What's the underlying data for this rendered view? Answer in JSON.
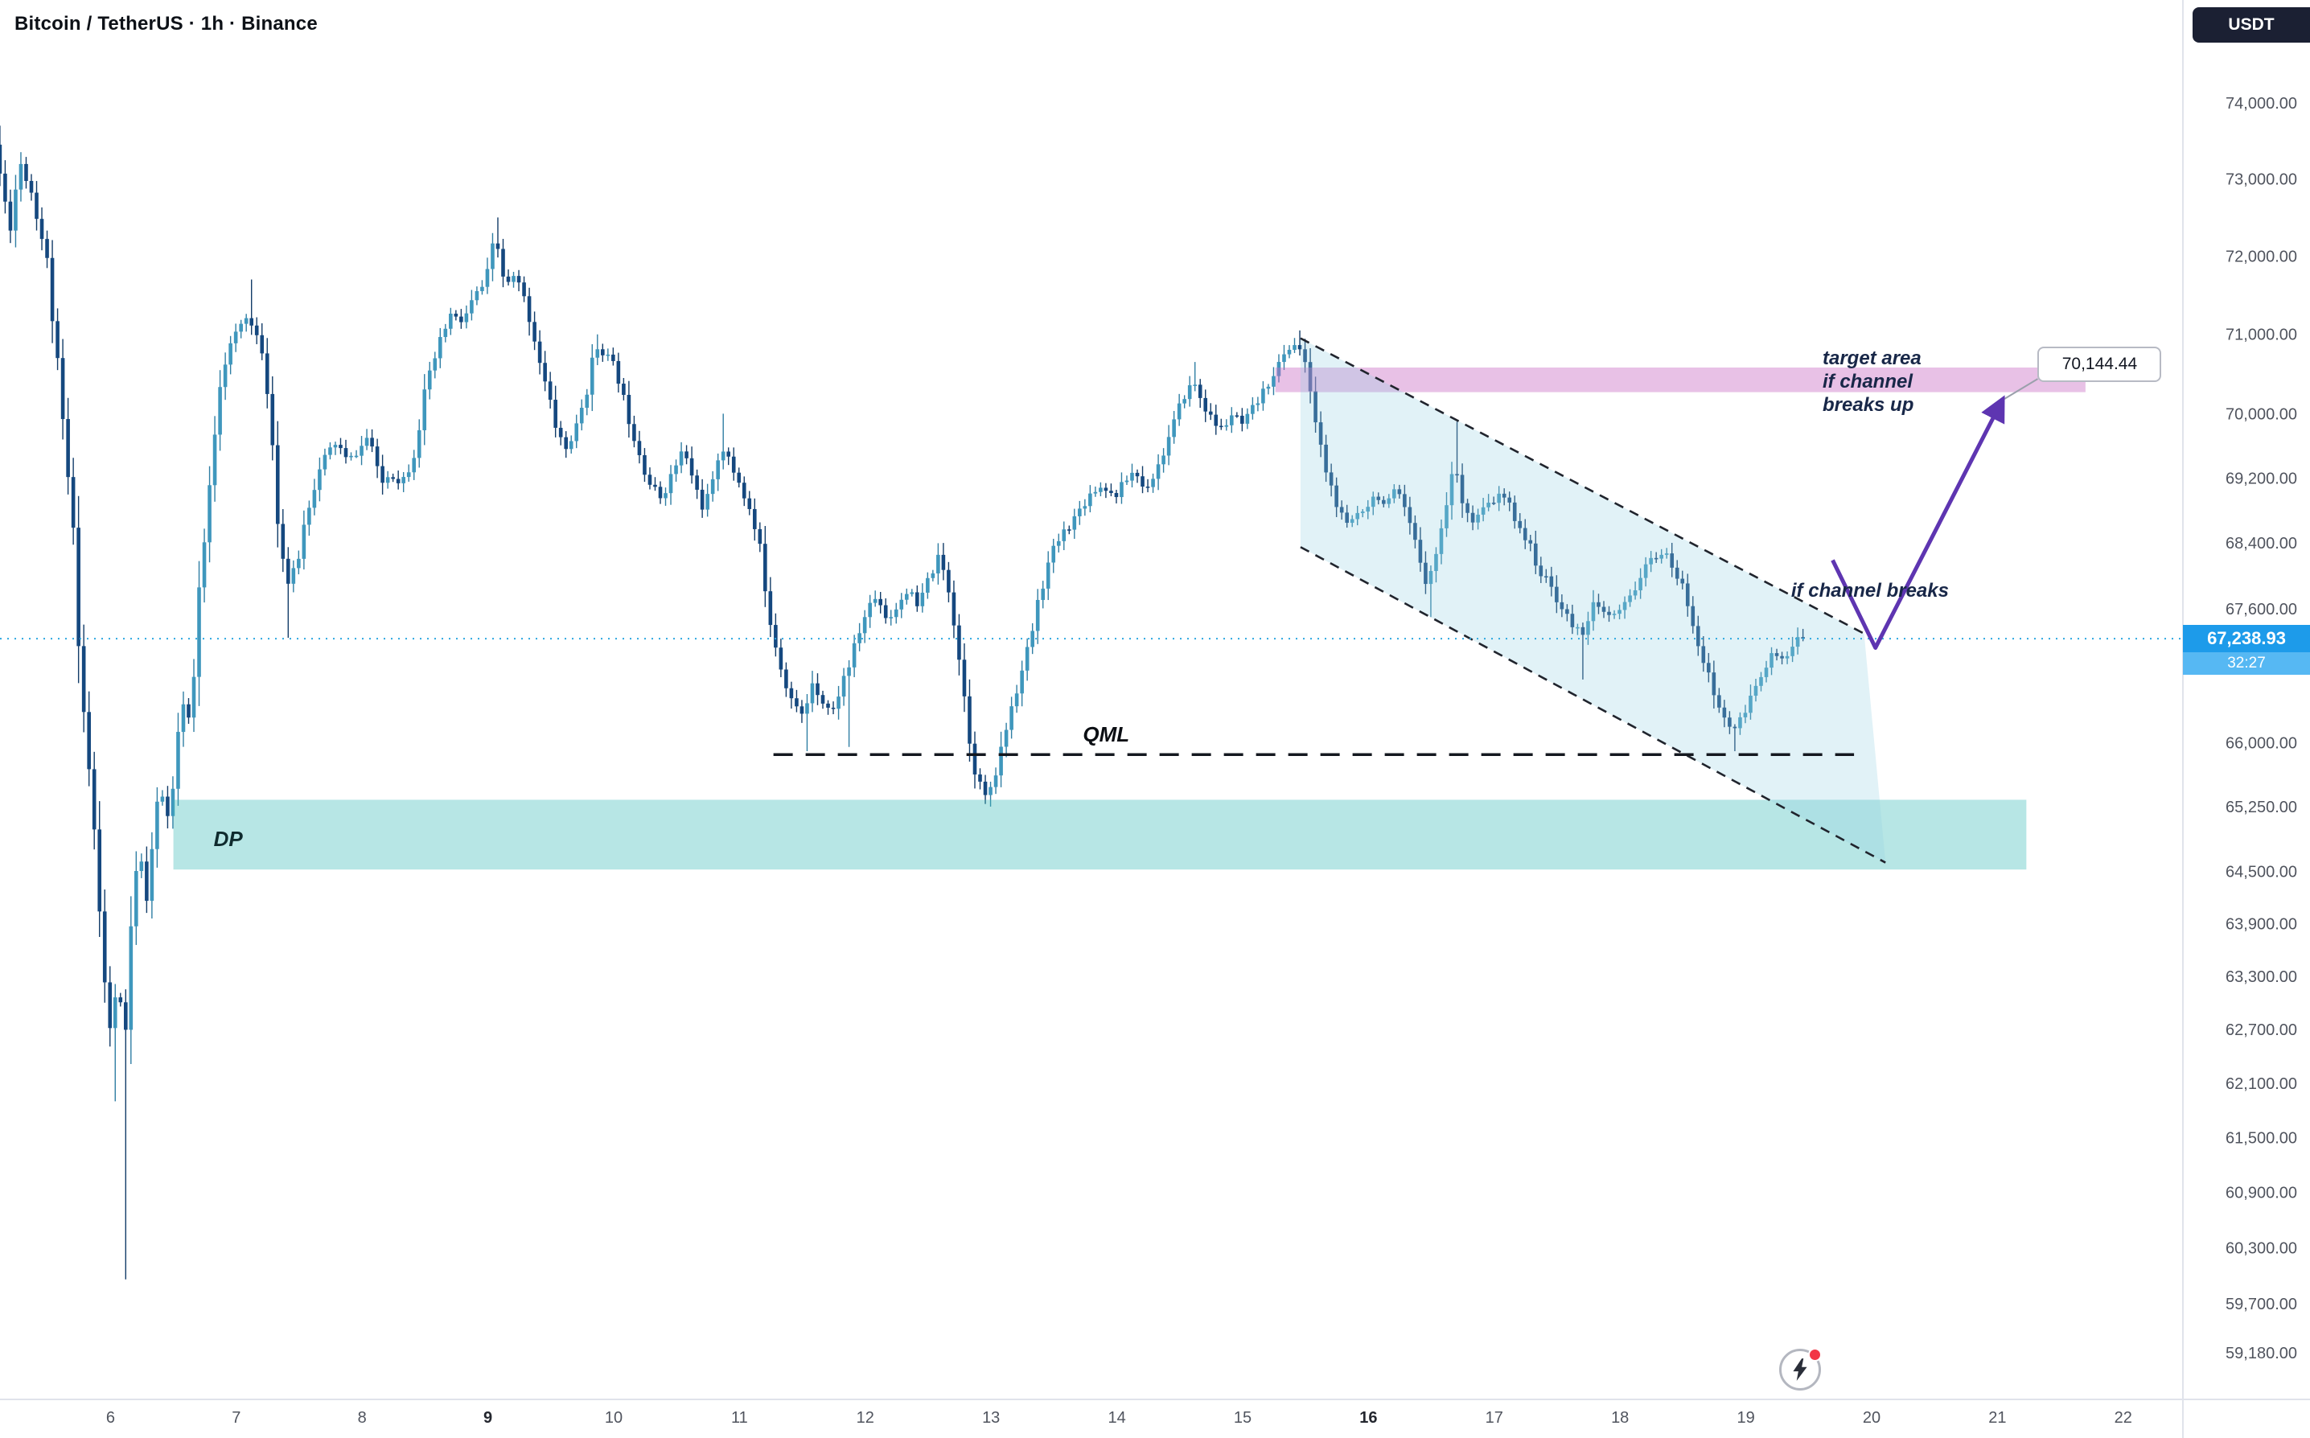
{
  "header": {
    "title": "Bitcoin / TetherUS · 1h · Binance"
  },
  "price_axis": {
    "currency": "USDT",
    "last_price": {
      "value": 67238.93,
      "label": "67,238.93",
      "countdown": "32:27"
    },
    "ticks": [
      {
        "value": 74000,
        "label": "74,000.00"
      },
      {
        "value": 73000,
        "label": "73,000.00"
      },
      {
        "value": 72000,
        "label": "72,000.00"
      },
      {
        "value": 71000,
        "label": "71,000.00"
      },
      {
        "value": 70000,
        "label": "70,000.00"
      },
      {
        "value": 69200,
        "label": "69,200.00"
      },
      {
        "value": 68400,
        "label": "68,400.00"
      },
      {
        "value": 67600,
        "label": "67,600.00"
      },
      {
        "value": 66000,
        "label": "66,000.00"
      },
      {
        "value": 65250,
        "label": "65,250.00"
      },
      {
        "value": 64500,
        "label": "64,500.00"
      },
      {
        "value": 63900,
        "label": "63,900.00"
      },
      {
        "value": 63300,
        "label": "63,300.00"
      },
      {
        "value": 62700,
        "label": "62,700.00"
      },
      {
        "value": 62100,
        "label": "62,100.00"
      },
      {
        "value": 61500,
        "label": "61,500.00"
      },
      {
        "value": 60900,
        "label": "60,900.00"
      },
      {
        "value": 60300,
        "label": "60,300.00"
      },
      {
        "value": 59700,
        "label": "59,700.00"
      },
      {
        "value": 59180,
        "label": "59,180.00"
      }
    ]
  },
  "time_axis": {
    "ticks": [
      {
        "day": 6,
        "label": "6",
        "bold": false
      },
      {
        "day": 7,
        "label": "7",
        "bold": false
      },
      {
        "day": 8,
        "label": "8",
        "bold": false
      },
      {
        "day": 9,
        "label": "9",
        "bold": true
      },
      {
        "day": 10,
        "label": "10",
        "bold": false
      },
      {
        "day": 11,
        "label": "11",
        "bold": false
      },
      {
        "day": 12,
        "label": "12",
        "bold": false
      },
      {
        "day": 13,
        "label": "13",
        "bold": false
      },
      {
        "day": 14,
        "label": "14",
        "bold": false
      },
      {
        "day": 15,
        "label": "15",
        "bold": false
      },
      {
        "day": 16,
        "label": "16",
        "bold": true
      },
      {
        "day": 17,
        "label": "17",
        "bold": false
      },
      {
        "day": 18,
        "label": "18",
        "bold": false
      },
      {
        "day": 19,
        "label": "19",
        "bold": false
      },
      {
        "day": 20,
        "label": "20",
        "bold": false
      },
      {
        "day": 21,
        "label": "21",
        "bold": false
      },
      {
        "day": 22,
        "label": "22",
        "bold": false
      }
    ]
  },
  "chart_data": {
    "type": "candlestick",
    "symbol": "Bitcoin / TetherUS",
    "interval": "1h",
    "exchange": "Binance",
    "price_scale": "log",
    "last_close": 67238.93,
    "visible_price_range": [
      58700,
      75380
    ],
    "visible_day_range": [
      5.1,
      22.5
    ],
    "price_path": [
      [
        5.1,
        73450
      ],
      [
        5.22,
        72350
      ],
      [
        5.3,
        73250
      ],
      [
        5.4,
        72800
      ],
      [
        5.52,
        71900
      ],
      [
        5.62,
        70200
      ],
      [
        5.72,
        68600
      ],
      [
        5.8,
        66500
      ],
      [
        5.88,
        65200
      ],
      [
        5.95,
        63600
      ],
      [
        6.02,
        62600
      ],
      [
        6.08,
        63400
      ],
      [
        6.13,
        62300
      ],
      [
        6.18,
        63900
      ],
      [
        6.25,
        64700
      ],
      [
        6.32,
        64100
      ],
      [
        6.4,
        65600
      ],
      [
        6.47,
        65100
      ],
      [
        6.52,
        65400
      ],
      [
        6.58,
        66500
      ],
      [
        6.66,
        66200
      ],
      [
        6.72,
        67600
      ],
      [
        6.8,
        68900
      ],
      [
        6.88,
        70400
      ],
      [
        6.96,
        70800
      ],
      [
        7.05,
        71100
      ],
      [
        7.12,
        71250
      ],
      [
        7.2,
        70900
      ],
      [
        7.28,
        70200
      ],
      [
        7.36,
        68600
      ],
      [
        7.42,
        67900
      ],
      [
        7.5,
        68100
      ],
      [
        7.58,
        68800
      ],
      [
        7.66,
        69200
      ],
      [
        7.74,
        69500
      ],
      [
        7.82,
        69650
      ],
      [
        7.9,
        69400
      ],
      [
        8.0,
        69550
      ],
      [
        8.08,
        69750
      ],
      [
        8.16,
        69100
      ],
      [
        8.24,
        69250
      ],
      [
        8.33,
        69150
      ],
      [
        8.42,
        69400
      ],
      [
        8.52,
        70250
      ],
      [
        8.62,
        70800
      ],
      [
        8.72,
        71250
      ],
      [
        8.82,
        71150
      ],
      [
        8.92,
        71500
      ],
      [
        9.0,
        71650
      ],
      [
        9.08,
        72250
      ],
      [
        9.16,
        71600
      ],
      [
        9.24,
        71750
      ],
      [
        9.32,
        71400
      ],
      [
        9.4,
        70900
      ],
      [
        9.48,
        70350
      ],
      [
        9.56,
        69850
      ],
      [
        9.64,
        69550
      ],
      [
        9.72,
        69800
      ],
      [
        9.8,
        70250
      ],
      [
        9.88,
        70850
      ],
      [
        9.96,
        70750
      ],
      [
        10.04,
        70550
      ],
      [
        10.12,
        70050
      ],
      [
        10.2,
        69650
      ],
      [
        10.3,
        69150
      ],
      [
        10.4,
        68950
      ],
      [
        10.5,
        69300
      ],
      [
        10.57,
        69550
      ],
      [
        10.64,
        69250
      ],
      [
        10.72,
        68850
      ],
      [
        10.8,
        69050
      ],
      [
        10.87,
        69650
      ],
      [
        10.95,
        69350
      ],
      [
        11.02,
        69150
      ],
      [
        11.1,
        68800
      ],
      [
        11.18,
        68350
      ],
      [
        11.27,
        67450
      ],
      [
        11.36,
        66850
      ],
      [
        11.45,
        66450
      ],
      [
        11.53,
        66300
      ],
      [
        11.6,
        66750
      ],
      [
        11.68,
        66500
      ],
      [
        11.76,
        66350
      ],
      [
        11.83,
        66700
      ],
      [
        11.9,
        66950
      ],
      [
        11.97,
        67300
      ],
      [
        12.05,
        67650
      ],
      [
        12.12,
        67750
      ],
      [
        12.2,
        67450
      ],
      [
        12.28,
        67650
      ],
      [
        12.36,
        67850
      ],
      [
        12.44,
        67600
      ],
      [
        12.52,
        67950
      ],
      [
        12.6,
        68200
      ],
      [
        12.67,
        67950
      ],
      [
        12.74,
        67350
      ],
      [
        12.8,
        66650
      ],
      [
        12.87,
        65850
      ],
      [
        12.94,
        65450
      ],
      [
        13.0,
        65350
      ],
      [
        13.06,
        65650
      ],
      [
        13.13,
        66100
      ],
      [
        13.2,
        66550
      ],
      [
        13.28,
        66900
      ],
      [
        13.35,
        67350
      ],
      [
        13.42,
        67850
      ],
      [
        13.5,
        68250
      ],
      [
        13.58,
        68500
      ],
      [
        13.66,
        68650
      ],
      [
        13.74,
        68850
      ],
      [
        13.83,
        69050
      ],
      [
        13.92,
        69100
      ],
      [
        14.0,
        68950
      ],
      [
        14.08,
        69150
      ],
      [
        14.16,
        69300
      ],
      [
        14.24,
        69050
      ],
      [
        14.32,
        69250
      ],
      [
        14.4,
        69550
      ],
      [
        14.48,
        69900
      ],
      [
        14.56,
        70250
      ],
      [
        14.63,
        70400
      ],
      [
        14.7,
        70150
      ],
      [
        14.78,
        69900
      ],
      [
        14.86,
        69800
      ],
      [
        14.94,
        70000
      ],
      [
        15.02,
        69850
      ],
      [
        15.1,
        70050
      ],
      [
        15.18,
        70250
      ],
      [
        15.26,
        70500
      ],
      [
        15.34,
        70700
      ],
      [
        15.42,
        70900
      ],
      [
        15.48,
        70800
      ],
      [
        15.55,
        70400
      ],
      [
        15.62,
        69700
      ],
      [
        15.7,
        69200
      ],
      [
        15.78,
        68800
      ],
      [
        15.85,
        68600
      ],
      [
        15.92,
        68750
      ],
      [
        16.0,
        68850
      ],
      [
        16.08,
        69000
      ],
      [
        16.16,
        68850
      ],
      [
        16.24,
        69050
      ],
      [
        16.32,
        68750
      ],
      [
        16.4,
        68350
      ],
      [
        16.48,
        67950
      ],
      [
        16.56,
        68250
      ],
      [
        16.63,
        68850
      ],
      [
        16.7,
        69350
      ],
      [
        16.77,
        68950
      ],
      [
        16.85,
        68650
      ],
      [
        16.93,
        68800
      ],
      [
        17.0,
        68900
      ],
      [
        17.08,
        69000
      ],
      [
        17.16,
        68800
      ],
      [
        17.24,
        68550
      ],
      [
        17.32,
        68300
      ],
      [
        17.4,
        68000
      ],
      [
        17.48,
        67850
      ],
      [
        17.56,
        67600
      ],
      [
        17.64,
        67400
      ],
      [
        17.72,
        67300
      ],
      [
        17.8,
        67650
      ],
      [
        17.88,
        67550
      ],
      [
        17.96,
        67500
      ],
      [
        18.04,
        67600
      ],
      [
        18.12,
        67800
      ],
      [
        18.2,
        68050
      ],
      [
        18.28,
        68200
      ],
      [
        18.36,
        68300
      ],
      [
        18.44,
        68100
      ],
      [
        18.52,
        67850
      ],
      [
        18.6,
        67450
      ],
      [
        18.68,
        67000
      ],
      [
        18.76,
        66600
      ],
      [
        18.84,
        66300
      ],
      [
        18.92,
        66150
      ],
      [
        19.0,
        66300
      ],
      [
        19.08,
        66600
      ],
      [
        19.16,
        66900
      ],
      [
        19.24,
        67050
      ],
      [
        19.32,
        66950
      ],
      [
        19.4,
        67150
      ],
      [
        19.45,
        67238.93
      ]
    ],
    "extremes": [
      {
        "day": 5.13,
        "price": 73700,
        "kind": "high"
      },
      {
        "day": 6.02,
        "price": 61900,
        "kind": "low"
      },
      {
        "day": 6.14,
        "price": 59960,
        "kind": "low"
      },
      {
        "day": 7.12,
        "price": 71700,
        "kind": "high"
      },
      {
        "day": 7.42,
        "price": 67250,
        "kind": "low"
      },
      {
        "day": 9.08,
        "price": 72500,
        "kind": "high"
      },
      {
        "day": 9.88,
        "price": 71000,
        "kind": "high"
      },
      {
        "day": 10.87,
        "price": 70000,
        "kind": "high"
      },
      {
        "day": 11.53,
        "price": 65900,
        "kind": "low"
      },
      {
        "day": 11.86,
        "price": 65950,
        "kind": "low"
      },
      {
        "day": 12.6,
        "price": 68400,
        "kind": "high"
      },
      {
        "day": 12.94,
        "price": 65300,
        "kind": "low"
      },
      {
        "day": 13.0,
        "price": 65250,
        "kind": "low"
      },
      {
        "day": 14.63,
        "price": 70650,
        "kind": "high"
      },
      {
        "day": 15.46,
        "price": 71050,
        "kind": "high"
      },
      {
        "day": 16.48,
        "price": 67500,
        "kind": "low"
      },
      {
        "day": 16.7,
        "price": 69900,
        "kind": "high"
      },
      {
        "day": 17.72,
        "price": 66750,
        "kind": "low"
      },
      {
        "day": 18.92,
        "price": 65900,
        "kind": "low"
      }
    ]
  },
  "annotations": {
    "qml_line": {
      "label": "QML",
      "price": 65860,
      "from_day": 11.27,
      "to_day": 19.86,
      "label_day": 13.73
    },
    "dp_band": {
      "label": "DP",
      "top_price": 65330,
      "bottom_price": 64520,
      "from_day": 6.5,
      "to_day": 21.23,
      "label_day": 6.82,
      "label_price": 64870
    },
    "target_band": {
      "top_price": 70580,
      "bottom_price": 70270,
      "from_day": 15.26,
      "to_day": 21.7
    },
    "target_text": {
      "lines": [
        "target area",
        "if channel",
        "breaks up"
      ],
      "day": 19.61,
      "price": 70700
    },
    "break_text": {
      "text": "if channel breaks",
      "day": 19.36,
      "price": 67800
    },
    "channel": {
      "upper": [
        [
          15.46,
          70950
        ],
        [
          19.94,
          67300
        ]
      ],
      "lower": [
        [
          15.46,
          68350
        ],
        [
          20.11,
          64600
        ]
      ]
    },
    "arrow": {
      "points": [
        [
          19.69,
          68190
        ],
        [
          20.03,
          67130
        ],
        [
          21.03,
          70144.44
        ]
      ]
    },
    "callout": {
      "text": "70,144.44",
      "day": 21.32,
      "price": 70640
    }
  },
  "colors": {
    "up": "#3f97bd",
    "down": "#15487f",
    "wick_up": "#2f7ea3",
    "wick_down": "#123c68",
    "last_price_badge": "#1d9bea",
    "countdown_badge": "#56b8f3",
    "current_price_line": "#2da8e0",
    "dp_band_fill": "rgba(66,190,186,0.38)",
    "target_band_fill": "rgba(199,108,196,0.42)",
    "channel_fill": "rgba(148,210,225,0.28)",
    "channel_line": "#20242d",
    "qml_line": "#14181f",
    "arrow": "#5e35b1",
    "annotation_text": "#182748",
    "axis_text": "#50545e",
    "usdt_badge_bg": "#1b2033"
  }
}
